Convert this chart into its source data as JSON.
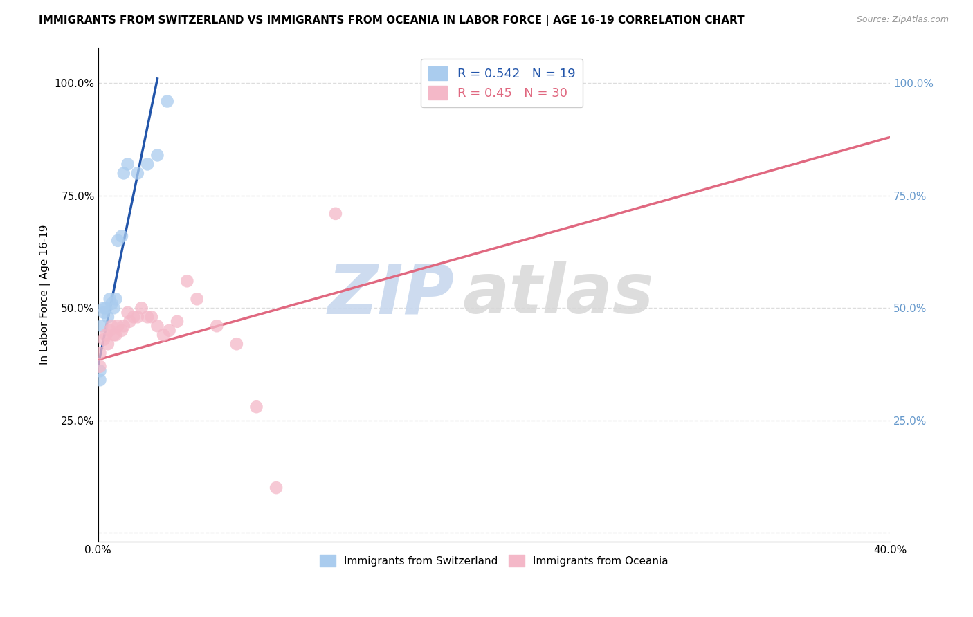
{
  "title": "IMMIGRANTS FROM SWITZERLAND VS IMMIGRANTS FROM OCEANIA IN LABOR FORCE | AGE 16-19 CORRELATION CHART",
  "source": "Source: ZipAtlas.com",
  "ylabel": "In Labor Force | Age 16-19",
  "xlim": [
    0.0,
    0.4
  ],
  "ylim": [
    -0.02,
    1.08
  ],
  "ytick_positions": [
    0.0,
    0.25,
    0.5,
    0.75,
    1.0
  ],
  "ytick_labels_left": [
    "",
    "25.0%",
    "50.0%",
    "75.0%",
    "100.0%"
  ],
  "ytick_labels_right": [
    "",
    "25.0%",
    "50.0%",
    "75.0%",
    "100.0%"
  ],
  "xtick_positions": [
    0.0,
    0.1,
    0.2,
    0.3,
    0.4
  ],
  "xtick_labels": [
    "0.0%",
    "",
    "",
    "",
    "40.0%"
  ],
  "switzerland_color": "#aaccee",
  "oceania_color": "#f4b8c8",
  "switzerland_line_color": "#2255aa",
  "oceania_line_color": "#e06880",
  "r_switzerland": 0.542,
  "n_switzerland": 19,
  "r_oceania": 0.45,
  "n_oceania": 30,
  "watermark_zip": "ZIP",
  "watermark_atlas": "atlas",
  "background_color": "#ffffff",
  "grid_color": "#dddddd",
  "title_fontsize": 11,
  "label_fontsize": 11,
  "tick_fontsize": 11,
  "legend_fontsize": 13,
  "right_tick_color": "#6699cc",
  "switzerland_x": [
    0.001,
    0.001,
    0.002,
    0.003,
    0.003,
    0.004,
    0.005,
    0.006,
    0.007,
    0.008,
    0.009,
    0.01,
    0.012,
    0.013,
    0.015,
    0.02,
    0.025,
    0.03,
    0.035
  ],
  "switzerland_y": [
    0.36,
    0.34,
    0.46,
    0.49,
    0.5,
    0.5,
    0.48,
    0.52,
    0.51,
    0.5,
    0.52,
    0.65,
    0.66,
    0.8,
    0.82,
    0.8,
    0.82,
    0.84,
    0.96
  ],
  "oceania_x": [
    0.001,
    0.001,
    0.003,
    0.004,
    0.005,
    0.006,
    0.007,
    0.008,
    0.009,
    0.01,
    0.012,
    0.013,
    0.015,
    0.016,
    0.018,
    0.02,
    0.022,
    0.025,
    0.027,
    0.03,
    0.033,
    0.036,
    0.04,
    0.045,
    0.05,
    0.06,
    0.07,
    0.08,
    0.09,
    0.12
  ],
  "oceania_y": [
    0.37,
    0.4,
    0.43,
    0.44,
    0.42,
    0.45,
    0.46,
    0.44,
    0.44,
    0.46,
    0.45,
    0.46,
    0.49,
    0.47,
    0.48,
    0.48,
    0.5,
    0.48,
    0.48,
    0.46,
    0.44,
    0.45,
    0.47,
    0.56,
    0.52,
    0.46,
    0.42,
    0.28,
    0.1,
    0.71
  ],
  "sw_trend_x0": 0.0,
  "sw_trend_y0": 0.37,
  "sw_trend_x1": 0.03,
  "sw_trend_y1": 1.01,
  "oc_trend_x0": 0.0,
  "oc_trend_y0": 0.385,
  "oc_trend_x1": 0.4,
  "oc_trend_y1": 0.88
}
